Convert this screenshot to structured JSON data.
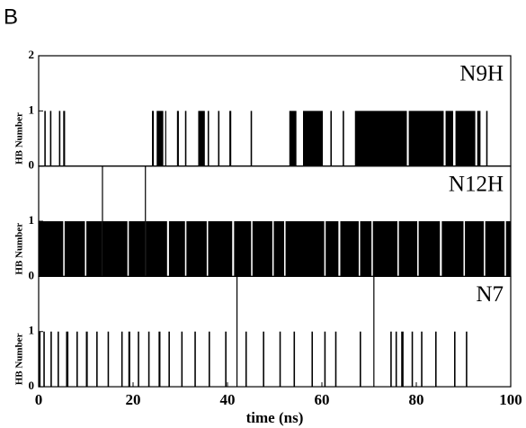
{
  "panel_letter": "B",
  "chart_data": [
    {
      "type": "step",
      "label": "N9H",
      "ylabel": "HB Number",
      "xlim": [
        0,
        100
      ],
      "ylim": [
        0,
        2
      ],
      "yticks": [
        0,
        1,
        2
      ],
      "color": "#000000",
      "x": [
        0,
        1.2,
        1.5,
        2.4,
        2.7,
        4.3,
        4.6,
        5.2,
        5.6,
        24.0,
        24.4,
        25.0,
        26.4,
        26.8,
        27.0,
        29.3,
        29.7,
        31.0,
        31.3,
        33.8,
        35.2,
        35.8,
        36.1,
        38.0,
        38.3,
        40.4,
        40.8,
        44.9,
        45.2,
        53.1,
        54.6,
        56.0,
        60.2,
        61.8,
        62.1,
        64.4,
        64.7,
        67.0,
        78.0,
        78.4,
        85.8,
        86.2,
        87.8,
        88.3,
        92.5,
        92.9,
        93.6,
        94.8,
        95.1
      ],
      "values": [
        0,
        1,
        0,
        1,
        0,
        1,
        0,
        1,
        0,
        1,
        0,
        1,
        0,
        1,
        0,
        1,
        0,
        1,
        0,
        1,
        0,
        1,
        0,
        1,
        0,
        1,
        0,
        1,
        0,
        1,
        0,
        1,
        0,
        1,
        0,
        1,
        0,
        1,
        0,
        1,
        0,
        1,
        0,
        1,
        0,
        1,
        0,
        1,
        0
      ]
    },
    {
      "type": "step",
      "label": "N12H",
      "ylabel": "HB Number",
      "xlim": [
        0,
        100
      ],
      "ylim": [
        0,
        2
      ],
      "yticks": [
        0,
        1
      ],
      "color": "#000000",
      "x": [
        0,
        5.2,
        5.5,
        9.8,
        10.1,
        13.4,
        13.6,
        18.8,
        19.1,
        22.5,
        22.7,
        27.2,
        27.6,
        31.0,
        31.3,
        35.6,
        35.9,
        41.0,
        41.4,
        45.0,
        45.3,
        49.5,
        49.8,
        52.0,
        52.3,
        60.5,
        60.8,
        63.5,
        63.9,
        67.8,
        68.1,
        70.5,
        70.8,
        76.0,
        76.3,
        80.2,
        80.5,
        85.0,
        85.4,
        90.0,
        90.3,
        94.3,
        94.6,
        98.7,
        99.0
      ],
      "values": [
        1,
        0,
        1,
        0,
        1,
        2,
        1,
        0,
        1,
        2,
        1,
        0,
        1,
        0,
        1,
        0,
        1,
        0,
        1,
        0,
        1,
        0,
        1,
        0,
        1,
        0,
        1,
        0,
        1,
        0,
        1,
        0,
        1,
        0,
        1,
        0,
        1,
        0,
        1,
        0,
        1,
        0,
        1,
        0,
        1
      ]
    },
    {
      "type": "step",
      "label": "N7",
      "ylabel": "HB Number",
      "xlabel": "time (ns)",
      "xlim": [
        0,
        100
      ],
      "xticks": [
        0,
        20,
        40,
        60,
        80,
        100
      ],
      "ylim": [
        0,
        2
      ],
      "yticks": [
        0,
        1
      ],
      "color": "#000000",
      "x": [
        0,
        0.4,
        1.0,
        1.3,
        2.5,
        2.8,
        4.0,
        4.3,
        5.8,
        6.3,
        8.0,
        8.3,
        10.0,
        10.4,
        12.2,
        12.5,
        14.6,
        14.9,
        17.5,
        17.8,
        19.0,
        19.4,
        21.0,
        21.3,
        23.2,
        23.5,
        25.4,
        25.8,
        27.5,
        27.8,
        30.2,
        30.5,
        33.0,
        33.3,
        36.0,
        36.3,
        39.5,
        39.8,
        41.9,
        42.1,
        43.8,
        44.1,
        47.5,
        47.8,
        51.0,
        51.3,
        54.0,
        54.3,
        57.8,
        58.1,
        60.5,
        60.8,
        62.8,
        63.1,
        68.0,
        68.3,
        70.9,
        71.1,
        74.5,
        74.8,
        75.6,
        75.9,
        76.8,
        77.3,
        79.0,
        79.3,
        81.0,
        81.3,
        84.0,
        84.3,
        88.0,
        88.3,
        90.5,
        90.8
      ],
      "values": [
        1,
        0,
        1,
        0,
        1,
        0,
        1,
        0,
        1,
        0,
        1,
        0,
        1,
        0,
        1,
        0,
        1,
        0,
        1,
        0,
        1,
        0,
        1,
        0,
        1,
        0,
        1,
        0,
        1,
        0,
        1,
        0,
        1,
        0,
        1,
        0,
        1,
        0,
        2,
        0,
        1,
        0,
        1,
        0,
        1,
        0,
        1,
        0,
        1,
        0,
        1,
        0,
        1,
        0,
        1,
        0,
        2,
        0,
        1,
        0,
        1,
        0,
        1,
        0,
        1,
        0,
        1,
        0,
        1,
        0,
        1,
        0,
        1,
        0
      ]
    }
  ]
}
